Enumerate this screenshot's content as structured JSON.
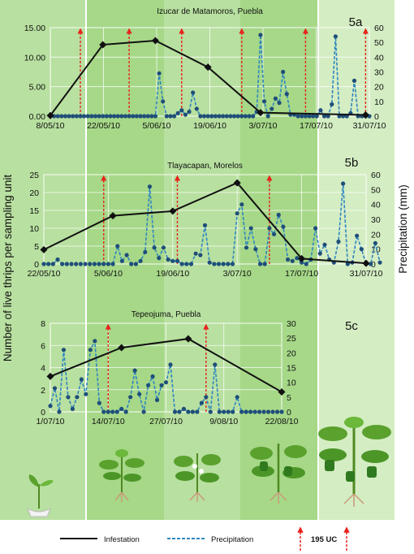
{
  "figure": {
    "ylabel_left": "Number of live thrips per sampling unit",
    "ylabel_right": "Precipitation (mm)",
    "legend": {
      "infestation": "Infestation",
      "precipitation": "Precipitation",
      "application": "195 UC"
    }
  },
  "chart_data": [
    {
      "panel": "5a",
      "type": "line",
      "title": "Izucar de Matamoros, Puebla",
      "xlim": [
        "2010-05-08",
        "2010-08-01"
      ],
      "x_ticks": [
        "8/05/10",
        "22/05/10",
        "5/06/10",
        "19/06/10",
        "3/07/10",
        "17/07/10",
        "31/07/10"
      ],
      "y_left": {
        "lim": [
          0,
          15
        ],
        "ticks": [
          "0.00",
          "5.00",
          "10.00",
          "15.00"
        ]
      },
      "y_right": {
        "lim": [
          0,
          60
        ],
        "ticks": [
          "0",
          "10",
          "20",
          "30",
          "40",
          "50",
          "60"
        ]
      },
      "series": [
        {
          "name": "Infestation",
          "axis": "left",
          "x": [
            "2010-05-08",
            "2010-05-22",
            "2010-06-05",
            "2010-06-19",
            "2010-07-03",
            "2010-07-31"
          ],
          "values": [
            0.1,
            12.1,
            12.8,
            8.3,
            0.6,
            0.2
          ]
        },
        {
          "name": "Precipitation",
          "axis": "right",
          "start": "2010-05-08",
          "values": [
            0,
            0,
            0,
            0,
            0,
            0,
            0,
            0,
            0,
            0,
            0,
            0,
            0,
            0,
            0,
            0,
            0,
            0,
            0,
            0,
            0,
            0,
            0,
            0,
            0,
            0,
            0,
            0,
            0,
            29,
            10,
            0,
            0,
            0,
            2,
            4,
            1,
            3,
            16,
            5,
            0,
            0,
            0,
            0,
            0,
            0,
            0,
            0,
            0,
            0,
            0,
            0,
            0,
            0,
            0,
            3,
            55,
            10,
            0,
            5,
            12,
            9,
            30,
            15,
            1,
            1,
            0,
            0,
            0,
            0,
            0,
            0,
            4,
            0,
            0,
            8,
            54,
            0,
            0,
            0,
            2,
            24,
            0,
            0,
            0,
            0
          ]
        }
      ],
      "applications": [
        "2010-05-16",
        "2010-05-29",
        "2010-06-12",
        "2010-06-28",
        "2010-07-15",
        "2010-07-31"
      ]
    },
    {
      "panel": "5b",
      "type": "line",
      "title": "Tlayacapan, Morelos",
      "xlim": [
        "2010-05-22",
        "2010-07-31"
      ],
      "x_ticks": [
        "22/05/10",
        "5/06/10",
        "19/06/10",
        "3/07/10",
        "17/07/10",
        "31/07/10"
      ],
      "y_left": {
        "lim": [
          0,
          25
        ],
        "ticks": [
          "0",
          "5",
          "10",
          "15",
          "20",
          "25"
        ]
      },
      "y_right": {
        "lim": [
          0,
          60
        ],
        "ticks": [
          "0",
          "10",
          "20",
          "30",
          "40",
          "50",
          "60"
        ]
      },
      "series": [
        {
          "name": "Infestation",
          "axis": "left",
          "x": [
            "2010-05-22",
            "2010-06-06",
            "2010-06-19",
            "2010-07-03",
            "2010-07-17",
            "2010-07-31"
          ],
          "values": [
            4,
            13.5,
            14.8,
            22.7,
            1.5,
            0.2
          ]
        },
        {
          "name": "Precipitation",
          "axis": "right",
          "start": "2010-05-22",
          "values": [
            0,
            0,
            0,
            3,
            0,
            0,
            0,
            0,
            0,
            0,
            0,
            0,
            0,
            0,
            0,
            0,
            12,
            2,
            6,
            0,
            0,
            2,
            8,
            52,
            11,
            4,
            11,
            3,
            2,
            2,
            0,
            0,
            0,
            7,
            6,
            26,
            1,
            0,
            0,
            0,
            0,
            0,
            34,
            40,
            11,
            24,
            10,
            0,
            0,
            24,
            20,
            33,
            25,
            3,
            2,
            4,
            1,
            0,
            3,
            24,
            7,
            13,
            3,
            1,
            15,
            54,
            0,
            1,
            19,
            10,
            0,
            0,
            14,
            1
          ]
        }
      ],
      "applications": [
        "2010-06-04",
        "2010-06-20",
        "2010-07-10"
      ]
    },
    {
      "panel": "5c",
      "type": "line",
      "title": "Tepeojuma, Puebla",
      "xlim": [
        "2010-07-01",
        "2010-08-22"
      ],
      "x_ticks": [
        "1/07/10",
        "14/07/10",
        "27/07/10",
        "9/08/10",
        "22/08/10"
      ],
      "y_left": {
        "lim": [
          0,
          8
        ],
        "ticks": [
          "0",
          "2",
          "4",
          "6",
          "8"
        ]
      },
      "y_right": {
        "lim": [
          0,
          30
        ],
        "ticks": [
          "0",
          "5",
          "10",
          "15",
          "20",
          "25",
          "30"
        ]
      },
      "series": [
        {
          "name": "Infestation",
          "axis": "left",
          "x": [
            "2010-07-01",
            "2010-07-17",
            "2010-08-01",
            "2010-08-22"
          ],
          "values": [
            3.2,
            5.8,
            6.6,
            1.8
          ]
        },
        {
          "name": "Precipitation",
          "axis": "right",
          "start": "2010-07-01",
          "values": [
            2,
            8,
            0,
            21,
            5,
            1,
            5,
            11,
            6,
            21,
            24,
            3,
            0,
            0,
            0,
            0,
            1,
            0,
            5,
            14,
            6,
            0,
            9,
            12,
            4,
            9,
            10,
            16,
            0,
            0,
            1,
            0,
            0,
            0,
            3,
            5,
            0,
            16,
            0,
            0,
            0,
            0,
            5,
            0,
            0,
            0,
            0,
            0,
            0,
            0,
            0,
            0,
            0
          ]
        }
      ],
      "applications": [
        "2010-07-14",
        "2010-08-05"
      ]
    }
  ]
}
